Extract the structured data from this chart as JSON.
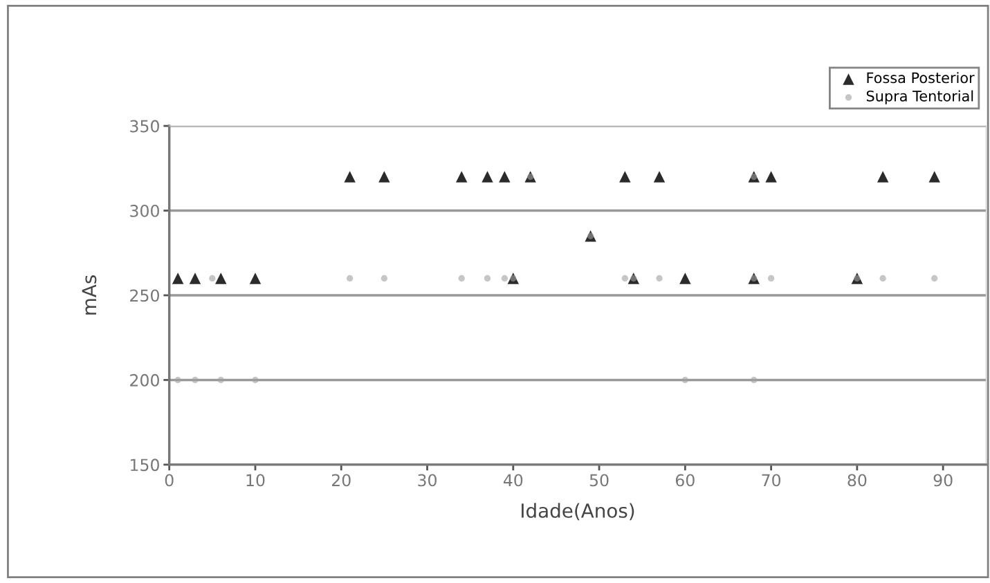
{
  "chart_data": {
    "type": "scatter",
    "xlabel": "Idade(Anos)",
    "ylabel": "mAs",
    "xlim": [
      0,
      95
    ],
    "xticks": [
      0,
      10,
      20,
      30,
      40,
      50,
      60,
      70,
      80,
      90
    ],
    "ylim": [
      150,
      350
    ],
    "yticks": [
      150,
      200,
      250,
      300,
      350
    ],
    "grid": "y",
    "legend": "top right",
    "series": [
      {
        "name": "Fossa Posterior",
        "color": "#2b2b2b",
        "marker": "triangle",
        "x": [
          1,
          3,
          6,
          10,
          21,
          25,
          34,
          37,
          39,
          42,
          40,
          49,
          53,
          57,
          54,
          60,
          68,
          70,
          68,
          80,
          83,
          89
        ],
        "values": [
          260,
          260,
          260,
          260,
          320,
          320,
          320,
          320,
          320,
          320,
          260,
          285,
          320,
          320,
          260,
          260,
          320,
          320,
          260,
          260,
          320,
          320
        ]
      },
      {
        "name": "Supra Tentorial",
        "color": "#a0a0a0",
        "marker": "circle",
        "x": [
          1,
          3,
          6,
          10,
          5,
          21,
          25,
          34,
          37,
          39,
          40,
          42,
          49,
          53,
          54,
          57,
          60,
          68,
          68,
          68,
          70,
          80,
          83,
          89
        ],
        "values": [
          200,
          200,
          200,
          200,
          260,
          260,
          260,
          260,
          260,
          260,
          260,
          320,
          285,
          260,
          260,
          260,
          200,
          320,
          260,
          200,
          260,
          260,
          260,
          260
        ]
      }
    ]
  }
}
